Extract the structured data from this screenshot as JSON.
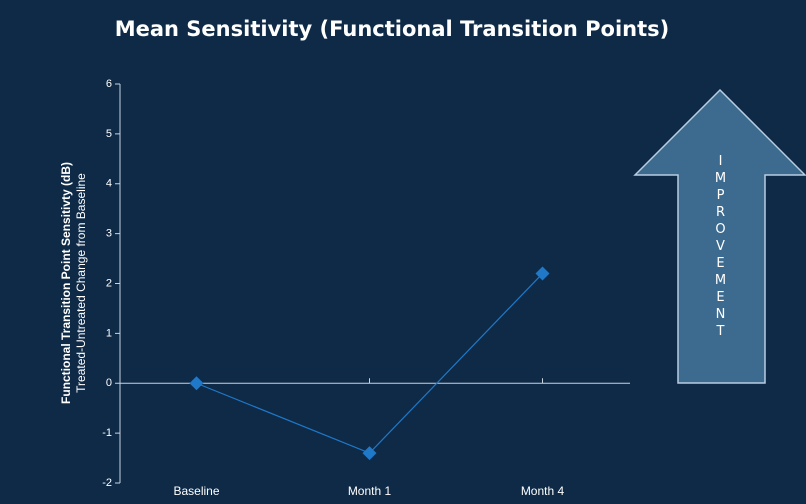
{
  "chart_data": {
    "type": "line",
    "title": "Mean Sensitivity (Functional Transition Points)",
    "ylabel": "Functional Transition Point Sensitivty (dB)",
    "ylabel2": "Treated-Untreated Change from Baseline",
    "categories": [
      "Baseline",
      "Month 1",
      "Month 4"
    ],
    "values": [
      0,
      -1.4,
      2.2
    ],
    "color": "#1f78c8",
    "ylim": [
      -2,
      6
    ],
    "yticks": [
      -2,
      -1,
      0,
      1,
      2,
      3,
      4,
      5,
      6
    ],
    "annotation": "IMPROVEMENT"
  }
}
